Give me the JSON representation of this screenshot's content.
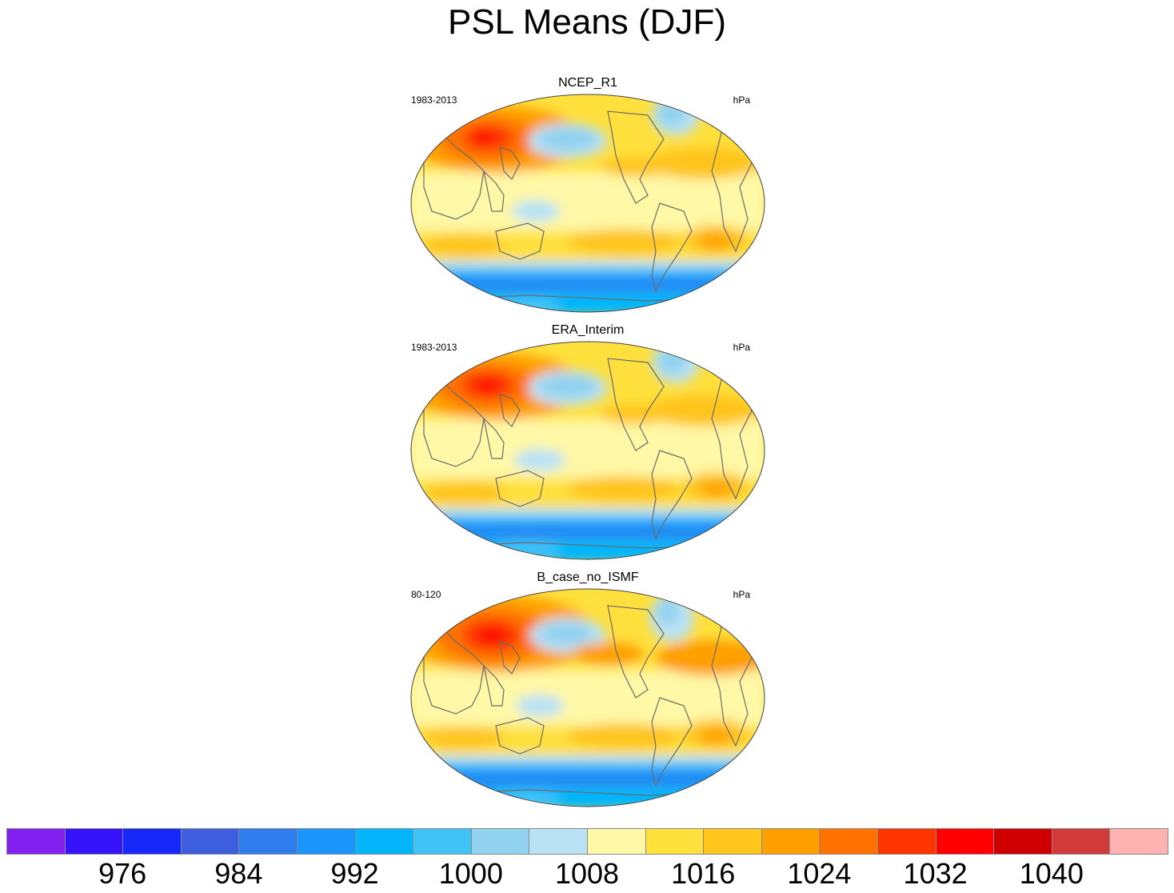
{
  "title": "PSL Means (DJF)",
  "panels": [
    {
      "name": "NCEP_R1",
      "period": "1983-2013",
      "units": "hPa"
    },
    {
      "name": "ERA_Interim",
      "period": "1983-2013",
      "units": "hPa"
    },
    {
      "name": "B_case_no_ISMF",
      "period": "80-120",
      "units": "hPa"
    }
  ],
  "colorbar": {
    "colors": [
      "#8220f0",
      "#3512fa",
      "#1628f7",
      "#3e5ee0",
      "#2e7cee",
      "#1995fb",
      "#05b5fb",
      "#40c4f8",
      "#90d2ef",
      "#b9e2f5",
      "#fff8a6",
      "#ffe03c",
      "#ffc51c",
      "#ff9f00",
      "#ff7200",
      "#ff3500",
      "#ff0000",
      "#d10000",
      "#d23a3a",
      "#ffb2b2"
    ],
    "labels": [
      "976",
      "984",
      "992",
      "1000",
      "1008",
      "1016",
      "1024",
      "1032",
      "1040"
    ]
  },
  "legend_label_positions": [
    2,
    4,
    6,
    8,
    10,
    12,
    14,
    16,
    18
  ]
}
